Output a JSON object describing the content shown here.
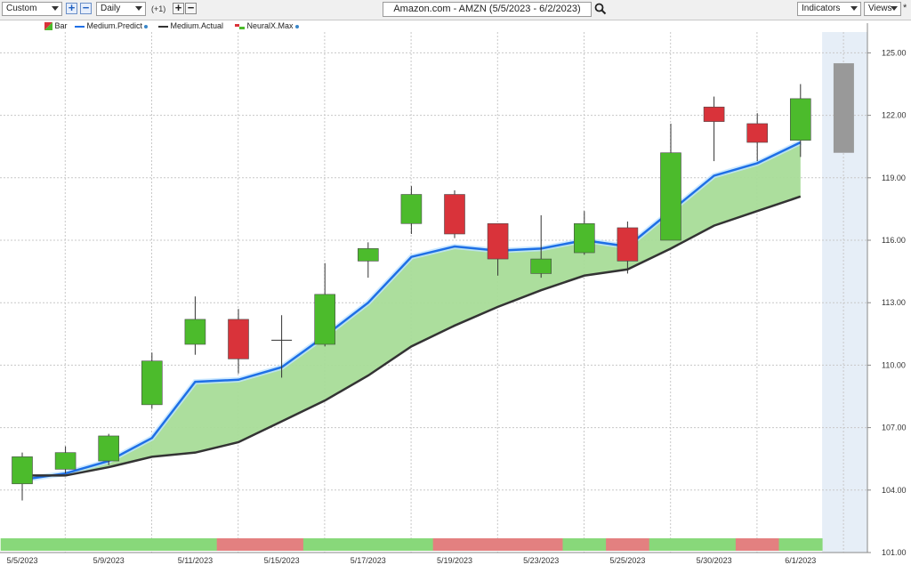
{
  "toolbar": {
    "layout_select": "Custom",
    "period_select": "Daily",
    "period_increment": "(+1)",
    "chart_title": "Amazon.com - AMZN (5/5/2023 - 6/2/2023)",
    "indicators_label": "Indicators",
    "views_label": "Views",
    "pin_label": "*"
  },
  "legend": {
    "bar": "Bar",
    "predict": "Medium.Predict",
    "actual": "Medium.Actual",
    "neuralx": "NeuralX.Max"
  },
  "colors": {
    "up": "#4cbb2c",
    "down": "#d9333a",
    "predict_line": "#1e6fe6",
    "actual_line": "#333333",
    "fill": "#a8dc98",
    "forecast_bar": "#999999",
    "forecast_zone": "#e6eef7",
    "neural_up": "#88d87a",
    "neural_down": "#e38080"
  },
  "chart_data": {
    "type": "candlestick",
    "title": "Amazon.com - AMZN (5/5/2023 - 6/2/2023)",
    "ylim": [
      101,
      126
    ],
    "y_ticks": [
      101.0,
      104.0,
      107.0,
      110.0,
      113.0,
      116.0,
      119.0,
      122.0,
      125.0
    ],
    "x_tick_labels": [
      "5/5/2023",
      "5/9/2023",
      "5/11/2023",
      "5/15/2023",
      "5/17/2023",
      "5/19/2023",
      "5/23/2023",
      "5/25/2023",
      "5/30/2023",
      "6/1/2023"
    ],
    "bars": [
      {
        "date": "5/5",
        "open": 104.3,
        "high": 105.8,
        "low": 103.5,
        "close": 105.6
      },
      {
        "date": "5/8",
        "open": 105.0,
        "high": 106.1,
        "low": 104.8,
        "close": 105.8
      },
      {
        "date": "5/9",
        "open": 105.4,
        "high": 106.7,
        "low": 105.2,
        "close": 106.6
      },
      {
        "date": "5/10",
        "open": 108.1,
        "high": 110.6,
        "low": 107.9,
        "close": 110.2
      },
      {
        "date": "5/11",
        "open": 111.0,
        "high": 113.3,
        "low": 110.5,
        "close": 112.2
      },
      {
        "date": "5/12",
        "open": 112.2,
        "high": 112.7,
        "low": 109.6,
        "close": 110.3
      },
      {
        "date": "5/15",
        "open": 111.2,
        "high": 112.4,
        "low": 109.4,
        "close": 111.2
      },
      {
        "date": "5/16",
        "open": 111.0,
        "high": 114.9,
        "low": 110.9,
        "close": 113.4
      },
      {
        "date": "5/17",
        "open": 115.0,
        "high": 115.9,
        "low": 114.2,
        "close": 115.6
      },
      {
        "date": "5/18",
        "open": 116.8,
        "high": 118.6,
        "low": 116.3,
        "close": 118.2
      },
      {
        "date": "5/19",
        "open": 118.2,
        "high": 118.4,
        "low": 116.1,
        "close": 116.3
      },
      {
        "date": "5/22",
        "open": 116.8,
        "high": 116.8,
        "low": 114.3,
        "close": 115.1
      },
      {
        "date": "5/23",
        "open": 114.4,
        "high": 117.2,
        "low": 114.2,
        "close": 115.1
      },
      {
        "date": "5/24",
        "open": 115.4,
        "high": 117.4,
        "low": 115.3,
        "close": 116.8
      },
      {
        "date": "5/25",
        "open": 116.6,
        "high": 116.9,
        "low": 114.4,
        "close": 115.0
      },
      {
        "date": "5/26",
        "open": 116.0,
        "high": 121.6,
        "low": 116.0,
        "close": 120.2
      },
      {
        "date": "5/30",
        "open": 122.4,
        "high": 122.9,
        "low": 119.8,
        "close": 121.7
      },
      {
        "date": "5/31",
        "open": 121.6,
        "high": 122.1,
        "low": 119.8,
        "close": 120.7
      },
      {
        "date": "6/1",
        "open": 120.8,
        "high": 123.5,
        "low": 120.0,
        "close": 122.8
      }
    ],
    "forecast_bar": {
      "date": "6/2",
      "low": 120.2,
      "high": 124.5
    },
    "series": [
      {
        "name": "Medium.Predict",
        "values": [
          104.5,
          104.8,
          105.4,
          106.5,
          109.2,
          109.3,
          109.9,
          111.4,
          113.0,
          115.2,
          115.7,
          115.5,
          115.6,
          116.0,
          115.7,
          117.4,
          119.1,
          119.7,
          120.7
        ]
      },
      {
        "name": "Medium.Actual",
        "values": [
          104.7,
          104.7,
          105.1,
          105.6,
          105.8,
          106.3,
          107.3,
          108.3,
          109.5,
          110.9,
          111.9,
          112.8,
          113.6,
          114.3,
          114.6,
          115.6,
          116.7,
          117.4,
          118.1
        ]
      }
    ],
    "neuralx_signal": [
      "up",
      "up",
      "up",
      "up",
      "up",
      "down",
      "down",
      "up",
      "up",
      "up",
      "down",
      "down",
      "down",
      "up",
      "down",
      "up",
      "up",
      "down",
      "up"
    ]
  }
}
